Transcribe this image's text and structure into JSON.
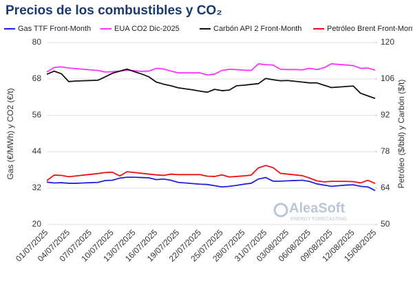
{
  "chart_data": {
    "type": "line",
    "title": "Precios de los combustibles y CO₂",
    "ylabel": "Gas (€/MWh) y CO2 (€/t)",
    "y2label": "Petróleo ($/bbl) y Carbón ($/t)",
    "watermark": {
      "name": "AleaSoft",
      "tagline": "ENERGY FORECASTING"
    },
    "categories": [
      "01/07/2025",
      null,
      null,
      "04/07/2025",
      null,
      null,
      "07/07/2025",
      null,
      null,
      "10/07/2025",
      null,
      null,
      "13/07/2025",
      null,
      null,
      "16/07/2025",
      null,
      null,
      "19/07/2025",
      null,
      null,
      "22/07/2025",
      null,
      null,
      "25/07/2025",
      null,
      null,
      "28/07/2025",
      null,
      null,
      "31/07/2025",
      null,
      null,
      "03/08/2025",
      null,
      null,
      "06/08/2025",
      null,
      null,
      "09/08/2025",
      null,
      null,
      "12/08/2025",
      null,
      null,
      "15/08/2025"
    ],
    "ylim": [
      20,
      80
    ],
    "yticks": [
      20,
      32,
      44,
      56,
      68,
      80
    ],
    "y2lim": [
      50,
      120
    ],
    "y2ticks": [
      50,
      64,
      78,
      92,
      106,
      120
    ],
    "grid": true,
    "legend": "top",
    "series": [
      {
        "name": "Gas TTF Front-Month",
        "color": "#1f1fe0",
        "axis": "y",
        "values": [
          34.0,
          33.7,
          33.8,
          33.6,
          33.6,
          33.7,
          33.8,
          33.9,
          34.5,
          34.6,
          35.3,
          35.6,
          35.6,
          35.5,
          35.4,
          34.8,
          35.0,
          34.6,
          33.9,
          33.7,
          33.5,
          33.3,
          33.2,
          32.8,
          32.4,
          32.6,
          32.9,
          33.3,
          33.6,
          35.0,
          35.5,
          34.3,
          34.3,
          34.4,
          34.5,
          34.6,
          34.2,
          33.4,
          33.0,
          32.6,
          32.8,
          33.0,
          33.1,
          32.6,
          32.4,
          31.2
        ]
      },
      {
        "name": "EUA CO2 Dic-2025",
        "color": "#ff33ff",
        "axis": "y",
        "values": [
          70.3,
          71.8,
          72.0,
          71.6,
          71.4,
          71.2,
          71.0,
          70.8,
          70.3,
          70.4,
          70.6,
          70.9,
          70.7,
          70.5,
          70.6,
          71.5,
          71.3,
          70.6,
          70.0,
          70.0,
          70.0,
          70.0,
          69.3,
          69.6,
          70.8,
          71.2,
          71.1,
          70.9,
          70.8,
          73.0,
          72.7,
          72.6,
          71.2,
          71.1,
          71.1,
          71.0,
          71.5,
          71.1,
          71.7,
          73.0,
          72.8,
          72.6,
          72.4,
          71.5,
          71.6,
          70.9
        ]
      },
      {
        "name": "Carbón API 2 Front-Month",
        "color": "#111111",
        "axis": "y2",
        "values": [
          107.8,
          109.0,
          108.0,
          105.0,
          105.2,
          105.3,
          105.4,
          105.5,
          106.8,
          108.2,
          109.0,
          109.8,
          108.8,
          107.9,
          106.8,
          104.8,
          104.0,
          103.4,
          102.6,
          102.2,
          101.8,
          101.3,
          100.9,
          102.0,
          101.5,
          101.7,
          103.4,
          103.6,
          103.9,
          104.2,
          106.2,
          105.7,
          105.3,
          105.4,
          105.1,
          104.8,
          104.5,
          104.5,
          103.6,
          102.7,
          102.9,
          103.1,
          103.3,
          100.5,
          99.5,
          98.5
        ]
      },
      {
        "name": "Petróleo Brent Front-Month",
        "color": "#ee1111",
        "axis": "y2",
        "values": [
          66.9,
          69.0,
          68.9,
          68.4,
          68.7,
          69.0,
          69.3,
          69.6,
          70.0,
          70.1,
          68.7,
          70.3,
          70.0,
          69.7,
          69.4,
          69.1,
          68.9,
          69.4,
          69.2,
          69.2,
          69.2,
          69.2,
          68.6,
          68.5,
          69.1,
          68.3,
          68.5,
          68.7,
          69.0,
          71.8,
          72.7,
          71.9,
          69.7,
          69.4,
          69.1,
          68.8,
          67.9,
          66.8,
          66.4,
          66.6,
          66.6,
          66.6,
          66.5,
          66.0,
          67.0,
          65.8
        ]
      }
    ]
  }
}
